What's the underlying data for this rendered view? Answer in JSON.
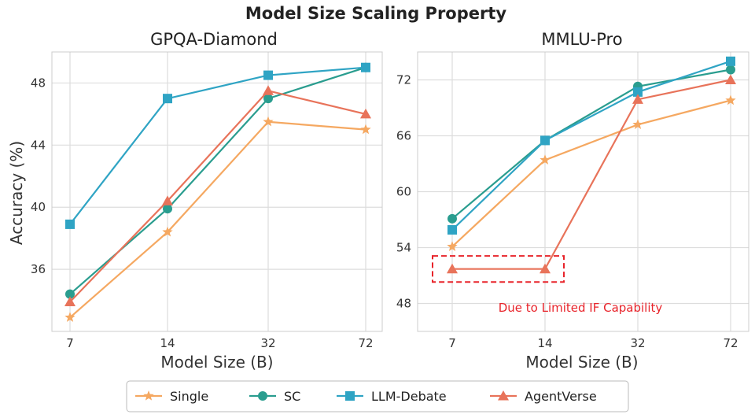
{
  "figure_title": "Model Size Scaling Property",
  "legend": {
    "entries": [
      "Single",
      "SC",
      "LLM-Debate",
      "AgentVerse"
    ]
  },
  "colors": {
    "Single": "#f5a861",
    "SC": "#2a9d8f",
    "LLM-Debate": "#2fa4c4",
    "AgentVerse": "#e8735a",
    "annotation": "#e8232a"
  },
  "chart_data": [
    {
      "type": "line",
      "title": "GPQA-Diamond",
      "xlabel": "Model Size (B)",
      "ylabel": "Accuracy (%)",
      "categories": [
        "7",
        "14",
        "32",
        "72"
      ],
      "ylim": [
        32,
        50
      ],
      "yticks": [
        36,
        40,
        44,
        48
      ],
      "grid": true,
      "series": [
        {
          "name": "Single",
          "marker": "star",
          "values": [
            32.9,
            38.4,
            45.5,
            45.0
          ]
        },
        {
          "name": "SC",
          "marker": "circle",
          "values": [
            34.4,
            39.9,
            47.0,
            49.0
          ]
        },
        {
          "name": "LLM-Debate",
          "marker": "square",
          "values": [
            38.9,
            47.0,
            48.5,
            49.0
          ]
        },
        {
          "name": "AgentVerse",
          "marker": "triangle",
          "values": [
            33.9,
            40.4,
            47.5,
            46.0
          ]
        }
      ]
    },
    {
      "type": "line",
      "title": "MMLU-Pro",
      "xlabel": "Model Size (B)",
      "ylabel": "",
      "categories": [
        "7",
        "14",
        "32",
        "72"
      ],
      "ylim": [
        45,
        75
      ],
      "yticks": [
        48,
        54,
        60,
        66,
        72
      ],
      "grid": true,
      "series": [
        {
          "name": "Single",
          "marker": "star",
          "values": [
            54.1,
            63.4,
            67.2,
            69.8
          ]
        },
        {
          "name": "SC",
          "marker": "circle",
          "values": [
            57.1,
            65.5,
            71.3,
            73.1
          ]
        },
        {
          "name": "LLM-Debate",
          "marker": "square",
          "values": [
            55.9,
            65.5,
            70.7,
            74.0
          ]
        },
        {
          "name": "AgentVerse",
          "marker": "triangle",
          "values": [
            51.7,
            51.7,
            69.9,
            72.0
          ]
        }
      ],
      "annotation": {
        "text": "Due to Limited IF Capability",
        "highlight_categories": [
          "7",
          "14"
        ],
        "highlight_range": [
          50.3,
          53.1
        ]
      }
    }
  ]
}
